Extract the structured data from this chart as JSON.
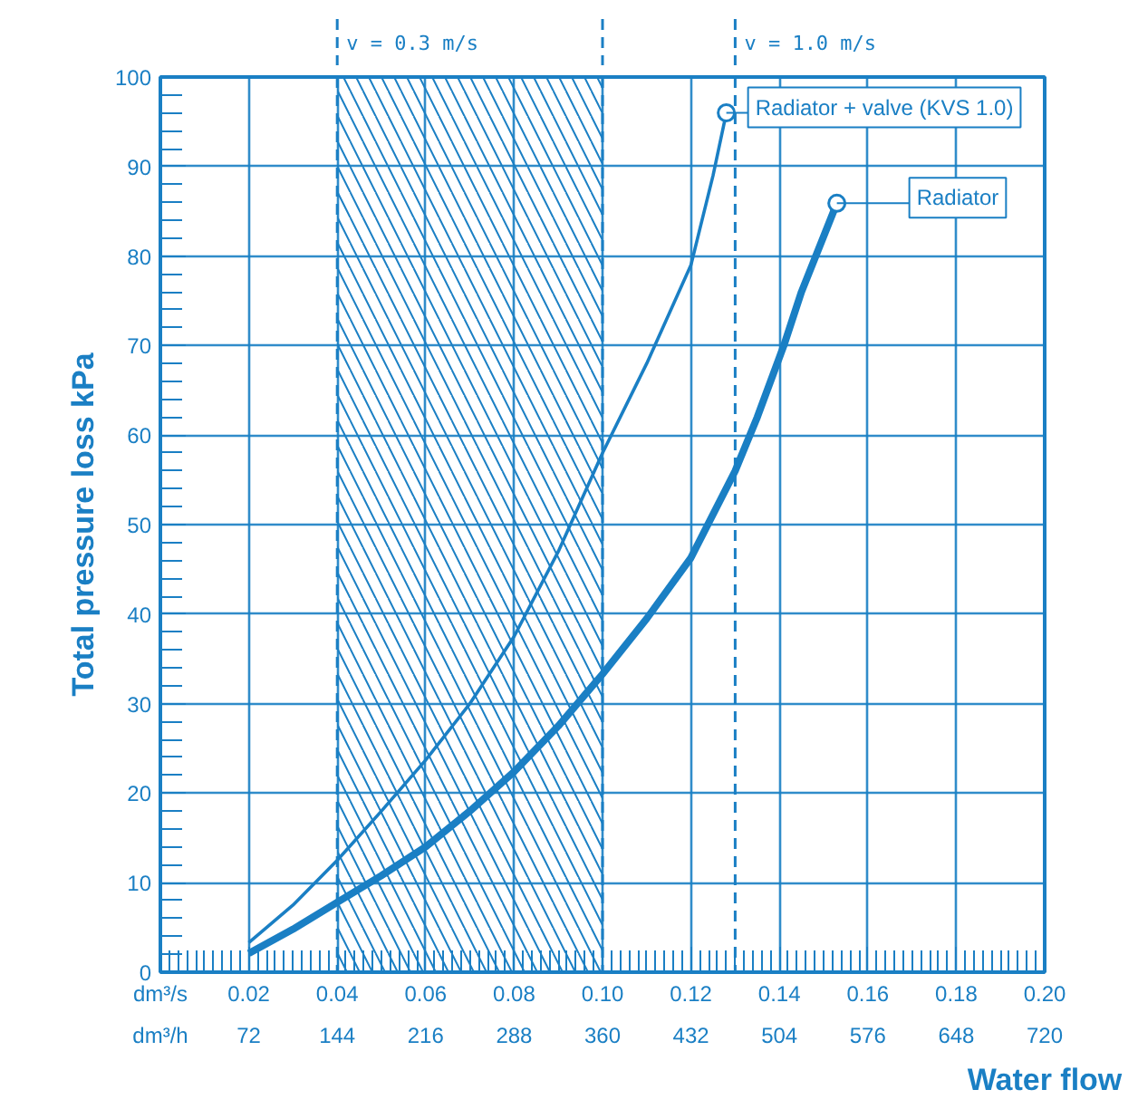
{
  "chart_data": {
    "type": "line",
    "xlabel": "Water flow",
    "ylabel": "Total pressure loss kPa",
    "annotations": [
      "dm³/s",
      "dm³/h",
      "v = 1.0 m/s"
    ],
    "xlim": [
      0,
      0.2
    ],
    "ylim": [
      0,
      100
    ],
    "xticks": [
      0.02,
      0.04,
      0.06,
      0.08,
      {
        "value": 0.1,
        "label": "0.10"
      },
      0.12,
      0.14,
      0.16,
      0.18,
      {
        "value": 0.2,
        "label": "0.20"
      }
    ],
    "yticks": [
      0,
      10,
      20,
      30,
      40,
      50,
      60,
      70,
      80,
      90,
      100
    ],
    "x2lim": [
      0,
      720
    ],
    "x2ticks": [
      72,
      144,
      216,
      288,
      360,
      432,
      504,
      576,
      648,
      720
    ],
    "grid": true,
    "line_style": "solid",
    "legend": "top right",
    "series": [
      {
        "name": "Radiator + valve (KVS 1.0)",
        "color": "#1a7fc4",
        "x": [
          0.02,
          0.03,
          0.04,
          0.05,
          0.06,
          0.07,
          0.08,
          0.09,
          0.1,
          0.11,
          0.12,
          0.125,
          0.128
        ],
        "values": [
          3.3,
          7.5,
          12.5,
          18,
          23.7,
          30,
          37.5,
          47,
          58,
          68,
          79,
          89,
          96
        ]
      },
      {
        "name": "Radiator",
        "color": "#1a7fc4",
        "x": [
          0.02,
          0.03,
          0.04,
          0.05,
          0.06,
          0.07,
          0.08,
          0.09,
          0.1,
          0.11,
          0.12,
          0.13,
          0.135,
          0.141,
          0.145,
          0.153
        ],
        "values": [
          2.1,
          4.8,
          7.8,
          10.8,
          14,
          18,
          22.4,
          27.5,
          33.3,
          39.5,
          46.3,
          56,
          62,
          70,
          76,
          85.9
        ]
      }
    ],
    "bands": [
      {
        "axis": "x",
        "from": 0.04,
        "to": 0.1,
        "label": "v = 0.3 m/s",
        "color": "#1a7fc4"
      }
    ],
    "ref_lines": [
      {
        "axis": "x",
        "value": 0.13,
        "color": "#1a7fc4",
        "line_style": "dashed"
      }
    ]
  }
}
